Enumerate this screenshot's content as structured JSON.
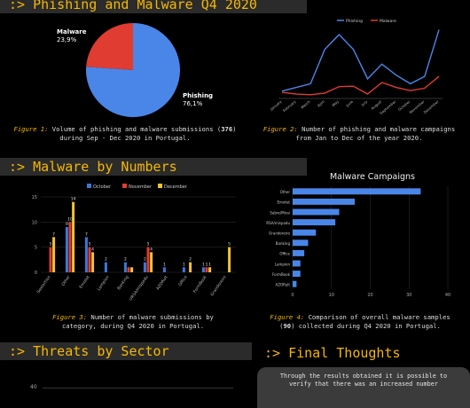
{
  "sections": {
    "phishing_malware": ":> Phishing and Malware Q4 2020",
    "malware_numbers": ":> Malware by Numbers",
    "threats_sector": ":> Threats by Sector",
    "final_thoughts": ":> Final Thoughts"
  },
  "captions": {
    "fig1": {
      "label": "Figure 1:",
      "text": " Volume of phishing and malware submissions (",
      "bold": "376",
      "text2": ") during Sep - Dec 2020 in Portugal."
    },
    "fig2": {
      "label": "Figure 2:",
      "text": " Number of phishing and malware campaigns from Jan to Dec of the year 2020."
    },
    "fig3": {
      "label": "Figure 3:",
      "text": " Number of malware submissions by category, during Q4 2020 in Portugal."
    },
    "fig4": {
      "label": "Figure 4:",
      "text": " Comparison of overall malware samples (",
      "bold": "90",
      "text2": ") collected during Q4 2020 in Portugal."
    }
  },
  "final_thoughts_text": "Through the results obtained it is possible to verify that there was an increased number",
  "threats_axis_label": "40",
  "colors": {
    "accent": "#f5b800",
    "phishing": "#4a86e8",
    "malware": "#e03c31",
    "october": "#3c78d8",
    "november": "#e03c31",
    "december": "#f1c232",
    "bars4": "#4a86e8"
  },
  "chart_data": [
    {
      "type": "pie",
      "slices": [
        {
          "label": "Malware",
          "value": 23.9,
          "display": "23,9%"
        },
        {
          "label": "Phishing",
          "value": 76.1,
          "display": "76,1%"
        }
      ]
    },
    {
      "type": "line",
      "categories": [
        "January",
        "February",
        "March",
        "April",
        "May",
        "June",
        "July",
        "August",
        "September",
        "October",
        "November",
        "December"
      ],
      "ylim": [
        0,
        300
      ],
      "series": [
        {
          "name": "Phishing",
          "values": [
            30,
            45,
            60,
            200,
            260,
            200,
            80,
            140,
            95,
            60,
            90,
            280
          ]
        },
        {
          "name": "Malware",
          "values": [
            25,
            18,
            15,
            22,
            48,
            50,
            18,
            65,
            45,
            32,
            42,
            90
          ]
        }
      ]
    },
    {
      "type": "bar",
      "categories": [
        "Sextortion",
        "Other",
        "Emotet",
        "Lampion",
        "Banking",
        "URSA/mispadu",
        "AZORult",
        "Office",
        "FormBook",
        "Grandoreiro"
      ],
      "ylim": [
        0,
        15
      ],
      "yticks": [
        0,
        5,
        10,
        15
      ],
      "series": [
        {
          "name": "October",
          "values": [
            0,
            9,
            7,
            2,
            2,
            2,
            1,
            1,
            1,
            0
          ]
        },
        {
          "name": "November",
          "values": [
            5,
            10,
            5,
            0,
            1,
            5,
            0,
            0,
            1,
            0
          ]
        },
        {
          "name": "December",
          "values": [
            7,
            14,
            4,
            0,
            1,
            4,
            0,
            2,
            1,
            5
          ]
        }
      ],
      "labels": [
        [
          "",
          "9",
          "7",
          "2",
          "2",
          "2",
          "1",
          "1",
          "1",
          ""
        ],
        [
          "5",
          "10",
          "5",
          "",
          "",
          "5",
          "",
          "",
          "1",
          ""
        ],
        [
          "7",
          "14",
          "4",
          "",
          "",
          "4",
          "",
          "2",
          "1",
          "5"
        ]
      ]
    },
    {
      "type": "bar",
      "title": "Malware Campaigns",
      "categories": [
        "Other",
        "Emotet",
        "Sabre/Mirai",
        "URSA/mispadu",
        "Grandoreiro",
        "Banking",
        "Office",
        "Lampion",
        "FormBook",
        "AZORult"
      ],
      "values": [
        33,
        16,
        12,
        11,
        6,
        4,
        3,
        2,
        2,
        1
      ],
      "xlim": [
        0,
        40
      ],
      "xticks": [
        0,
        10,
        20,
        30,
        40
      ]
    }
  ]
}
